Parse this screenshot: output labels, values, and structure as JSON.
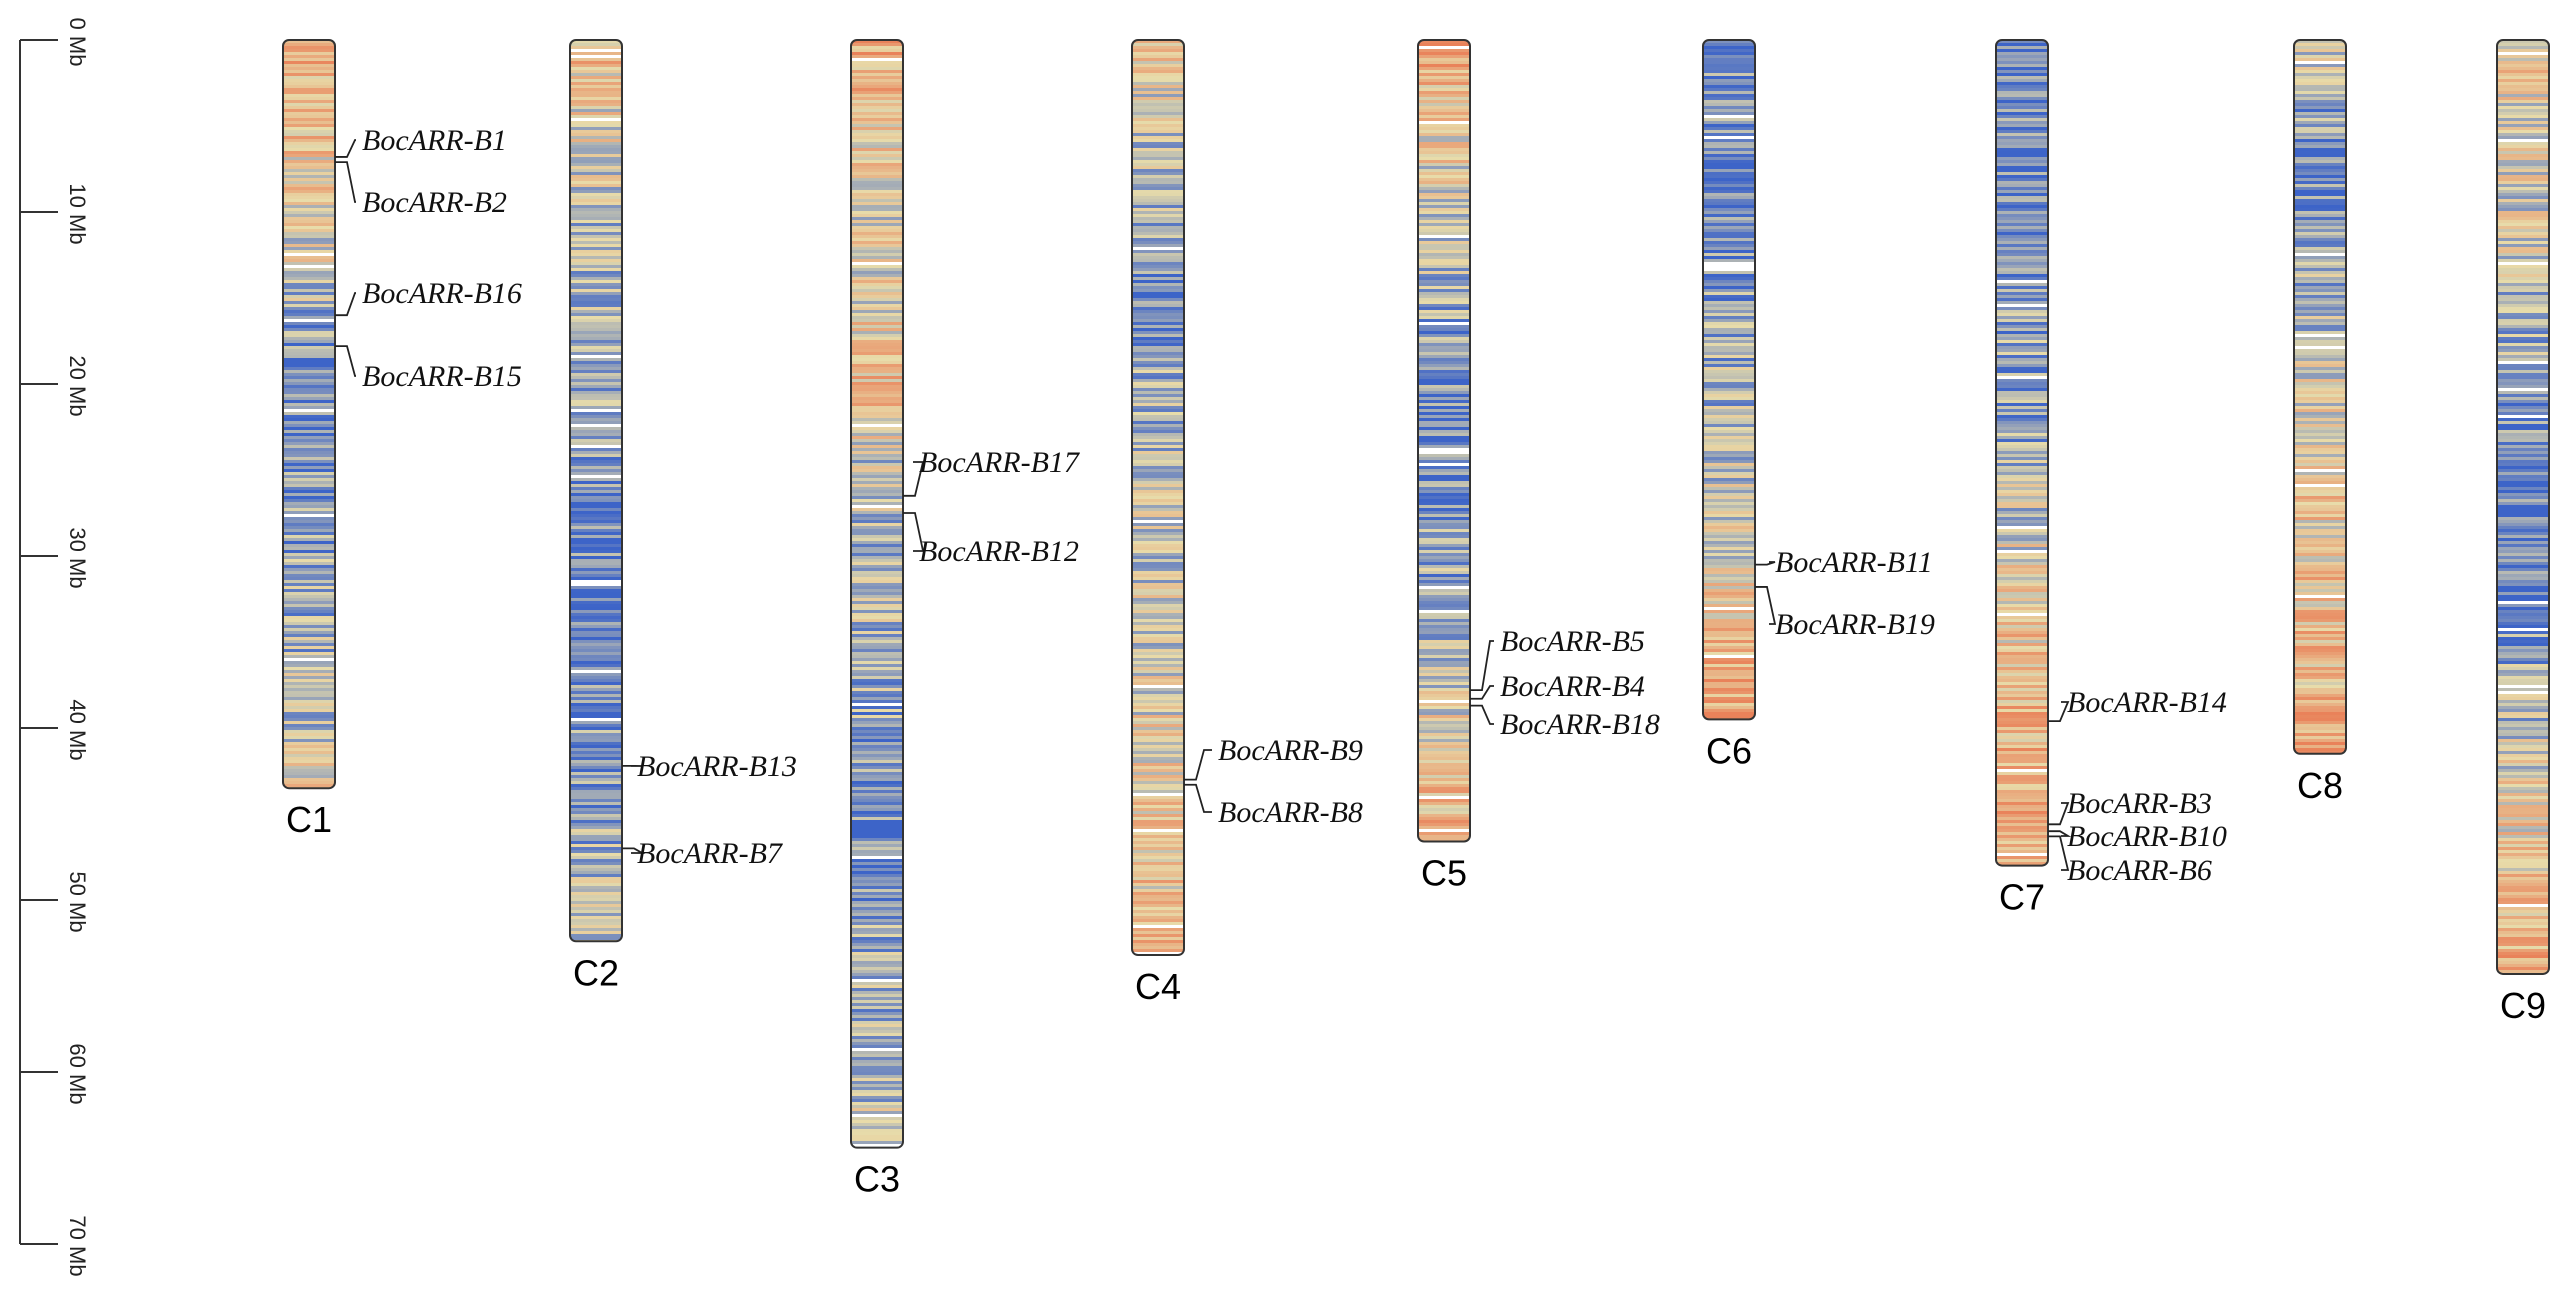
{
  "scale": {
    "unit": "Mb",
    "ticks": [
      "0 Mb",
      "10 Mb",
      "20 Mb",
      "30 Mb",
      "40 Mb",
      "50 Mb",
      "60 Mb",
      "70 Mb"
    ],
    "tick_values": [
      0,
      10,
      20,
      30,
      40,
      50,
      60,
      70
    ]
  },
  "chromosomes": [
    {
      "name": "C1",
      "length_mb": 43.5,
      "genes": [
        {
          "name": "BocARR-B1",
          "pos_mb": 6.8
        },
        {
          "name": "BocARR-B2",
          "pos_mb": 7.1
        },
        {
          "name": "BocARR-B16",
          "pos_mb": 16.0
        },
        {
          "name": "BocARR-B15",
          "pos_mb": 17.8
        }
      ]
    },
    {
      "name": "C2",
      "length_mb": 52.4,
      "genes": [
        {
          "name": "BocARR-B13",
          "pos_mb": 42.2
        },
        {
          "name": "BocARR-B7",
          "pos_mb": 47.0
        }
      ]
    },
    {
      "name": "C3",
      "length_mb": 64.4,
      "genes": [
        {
          "name": "BocARR-B17",
          "pos_mb": 26.5
        },
        {
          "name": "BocARR-B12",
          "pos_mb": 27.5
        }
      ]
    },
    {
      "name": "C4",
      "length_mb": 53.2,
      "genes": [
        {
          "name": "BocARR-B9",
          "pos_mb": 43.0
        },
        {
          "name": "BocARR-B8",
          "pos_mb": 43.3
        }
      ]
    },
    {
      "name": "C5",
      "length_mb": 46.6,
      "genes": [
        {
          "name": "BocARR-B5",
          "pos_mb": 37.8
        },
        {
          "name": "BocARR-B4",
          "pos_mb": 38.3
        },
        {
          "name": "BocARR-B18",
          "pos_mb": 38.7
        }
      ]
    },
    {
      "name": "C6",
      "length_mb": 39.5,
      "genes": [
        {
          "name": "BocARR-B11",
          "pos_mb": 30.5
        },
        {
          "name": "BocARR-B19",
          "pos_mb": 31.8
        }
      ]
    },
    {
      "name": "C7",
      "length_mb": 48.0,
      "genes": [
        {
          "name": "BocARR-B14",
          "pos_mb": 39.6
        },
        {
          "name": "BocARR-B3",
          "pos_mb": 45.6
        },
        {
          "name": "BocARR-B10",
          "pos_mb": 46.0
        },
        {
          "name": "BocARR-B6",
          "pos_mb": 46.3
        }
      ]
    },
    {
      "name": "C8",
      "length_mb": 41.5,
      "genes": []
    },
    {
      "name": "C9",
      "length_mb": 54.3,
      "genes": []
    }
  ],
  "colors": {
    "low_density": "#3d64c8",
    "mid_density": "#e8dcaa",
    "high_density": "#e9825a",
    "outline": "#333333"
  }
}
